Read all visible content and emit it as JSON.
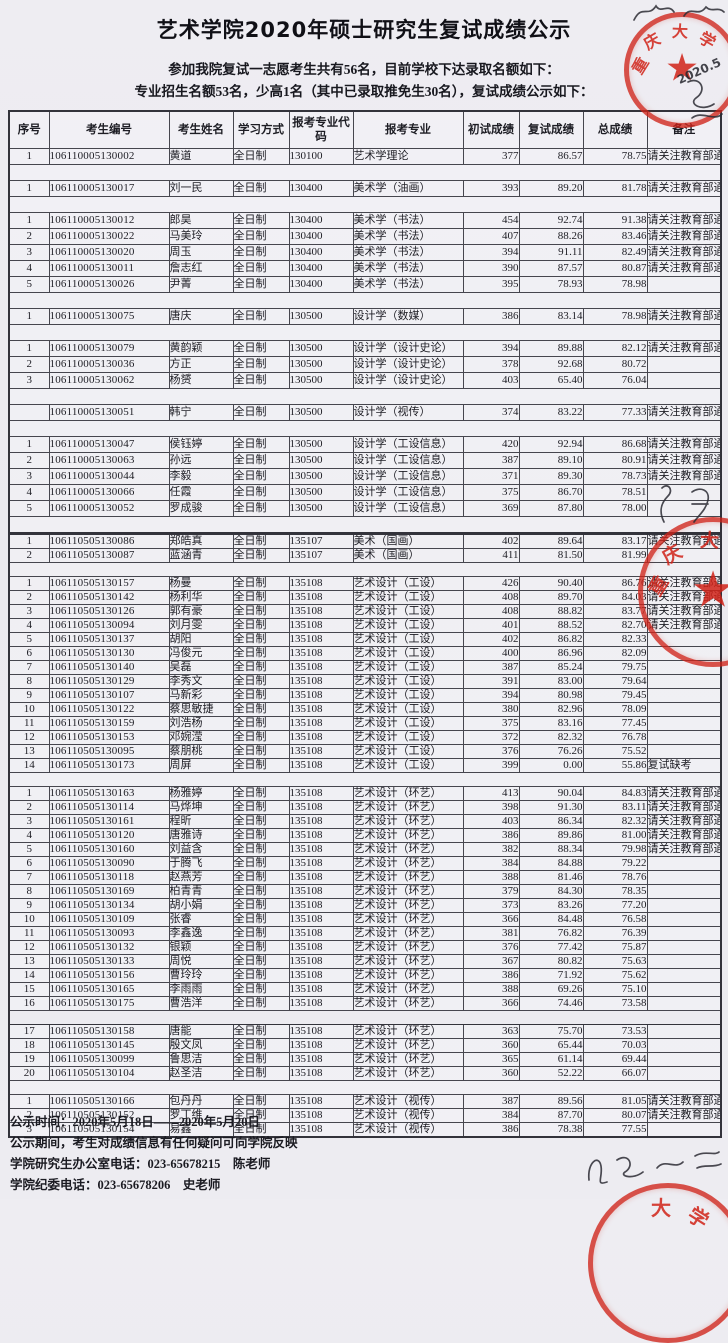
{
  "page": {
    "title": "艺术学院2020年硕士研究生复试成绩公示",
    "intro_line1": "参加我院复试一志愿考生共有56名，目前学校下达录取名额如下：",
    "intro_line2": "专业招生名额53名，少高1名（其中已录取推免生30名），复试成绩公示如下："
  },
  "table": {
    "headers": [
      "序号",
      "考生编号",
      "考生姓名",
      "学习方式",
      "报考专业代码",
      "报考专业",
      "初试成绩",
      "复试成绩",
      "总成绩",
      "备注"
    ]
  },
  "table1_rows": [
    [
      "1",
      "106110005130002",
      "黄道",
      "全日制",
      "130100",
      "艺术学理论",
      "377",
      "86.57",
      "78.75",
      "请关注教育部通知"
    ],
    "sep",
    [
      "1",
      "106110005130017",
      "刘一民",
      "全日制",
      "130400",
      "美术学（油画）",
      "393",
      "89.20",
      "81.78",
      "请关注教育部通知"
    ],
    "sep",
    [
      "1",
      "106110005130012",
      "郎昊",
      "全日制",
      "130400",
      "美术学（书法）",
      "454",
      "92.74",
      "91.38",
      "请关注教育部通知"
    ],
    [
      "2",
      "106110005130022",
      "马美玲",
      "全日制",
      "130400",
      "美术学（书法）",
      "407",
      "88.26",
      "83.46",
      "请关注教育部通知"
    ],
    [
      "3",
      "106110005130020",
      "周玉",
      "全日制",
      "130400",
      "美术学（书法）",
      "394",
      "91.11",
      "82.49",
      "请关注教育部通知"
    ],
    [
      "4",
      "106110005130011",
      "詹志红",
      "全日制",
      "130400",
      "美术学（书法）",
      "390",
      "87.57",
      "80.87",
      "请关注教育部通知"
    ],
    [
      "5",
      "106110005130026",
      "尹菁",
      "全日制",
      "130400",
      "美术学（书法）",
      "395",
      "78.93",
      "78.98",
      ""
    ],
    "sep",
    [
      "1",
      "106110005130075",
      "唐庆",
      "全日制",
      "130500",
      "设计学（数媒）",
      "386",
      "83.14",
      "78.98",
      "请关注教育部通知"
    ],
    "sep",
    [
      "1",
      "106110005130079",
      "黄韵颖",
      "全日制",
      "130500",
      "设计学（设计史论）",
      "394",
      "89.88",
      "82.12",
      "请关注教育部通知"
    ],
    [
      "2",
      "106110005130036",
      "方正",
      "全日制",
      "130500",
      "设计学（设计史论）",
      "378",
      "92.68",
      "80.72",
      ""
    ],
    [
      "3",
      "106110005130062",
      "杨赟",
      "全日制",
      "130500",
      "设计学（设计史论）",
      "403",
      "65.40",
      "76.04",
      ""
    ],
    "sep",
    [
      "",
      "106110005130051",
      "韩宁",
      "全日制",
      "130500",
      "设计学（视传）",
      "374",
      "83.22",
      "77.33",
      "请关注教育部通知"
    ],
    "sep",
    [
      "1",
      "106110005130047",
      "侯钰婷",
      "全日制",
      "130500",
      "设计学（工设信息）",
      "420",
      "92.94",
      "86.68",
      "请关注教育部通知"
    ],
    [
      "2",
      "106110005130063",
      "孙远",
      "全日制",
      "130500",
      "设计学（工设信息）",
      "387",
      "89.10",
      "80.91",
      "请关注教育部通知"
    ],
    [
      "3",
      "106110005130044",
      "李毅",
      "全日制",
      "130500",
      "设计学（工设信息）",
      "371",
      "89.30",
      "78.73",
      "请关注教育部通知"
    ],
    [
      "4",
      "106110005130066",
      "任霞",
      "全日制",
      "130500",
      "设计学（工设信息）",
      "375",
      "86.70",
      "78.51",
      ""
    ],
    [
      "5",
      "106110005130052",
      "罗成骏",
      "全日制",
      "130500",
      "设计学（工设信息）",
      "369",
      "87.80",
      "78.00",
      ""
    ],
    "sep"
  ],
  "table2_rows": [
    [
      "1",
      "106110505130086",
      "郑皓真",
      "全日制",
      "135107",
      "美术（国画）",
      "402",
      "89.64",
      "83.17",
      "请关注教育部通知"
    ],
    [
      "2",
      "106110505130087",
      "蓝涵青",
      "全日制",
      "135107",
      "美术（国画）",
      "411",
      "81.50",
      "81.99",
      ""
    ],
    "sep",
    [
      "1",
      "106110505130157",
      "杨曼",
      "全日制",
      "135108",
      "艺术设计（工设）",
      "426",
      "90.40",
      "86.76",
      "请关注教育部通知"
    ],
    [
      "2",
      "106110505130142",
      "杨利华",
      "全日制",
      "135108",
      "艺术设计（工设）",
      "408",
      "89.70",
      "84.03",
      "请关注教育部通知（少高）"
    ],
    [
      "3",
      "106110505130126",
      "郭有豪",
      "全日制",
      "135108",
      "艺术设计（工设）",
      "408",
      "88.82",
      "83.77",
      "请关注教育部通知"
    ],
    [
      "4",
      "106110505130094",
      "刘月雯",
      "全日制",
      "135108",
      "艺术设计（工设）",
      "401",
      "88.52",
      "82.70",
      "请关注教育部通知"
    ],
    [
      "5",
      "106110505130137",
      "胡阳",
      "全日制",
      "135108",
      "艺术设计（工设）",
      "402",
      "86.82",
      "82.33",
      ""
    ],
    [
      "6",
      "106110505130130",
      "冯俊元",
      "全日制",
      "135108",
      "艺术设计（工设）",
      "400",
      "86.96",
      "82.09",
      ""
    ],
    [
      "7",
      "106110505130140",
      "吴磊",
      "全日制",
      "135108",
      "艺术设计（工设）",
      "387",
      "85.24",
      "79.75",
      ""
    ],
    [
      "8",
      "106110505130129",
      "李秀文",
      "全日制",
      "135108",
      "艺术设计（工设）",
      "391",
      "83.00",
      "79.64",
      ""
    ],
    [
      "9",
      "106110505130107",
      "马新彩",
      "全日制",
      "135108",
      "艺术设计（工设）",
      "394",
      "80.98",
      "79.45",
      ""
    ],
    [
      "10",
      "106110505130122",
      "蔡思敏捷",
      "全日制",
      "135108",
      "艺术设计（工设）",
      "380",
      "82.96",
      "78.09",
      ""
    ],
    [
      "11",
      "106110505130159",
      "刘浩杨",
      "全日制",
      "135108",
      "艺术设计（工设）",
      "375",
      "83.16",
      "77.45",
      ""
    ],
    [
      "12",
      "106110505130153",
      "邓婉滢",
      "全日制",
      "135108",
      "艺术设计（工设）",
      "372",
      "82.32",
      "76.78",
      ""
    ],
    [
      "13",
      "106110505130095",
      "蔡朋桃",
      "全日制",
      "135108",
      "艺术设计（工设）",
      "376",
      "76.26",
      "75.52",
      ""
    ],
    [
      "14",
      "106110505130173",
      "周屏",
      "全日制",
      "135108",
      "艺术设计（工设）",
      "399",
      "0.00",
      "55.86",
      "复试缺考"
    ],
    "sep",
    [
      "1",
      "106110505130163",
      "杨雅婷",
      "全日制",
      "135108",
      "艺术设计（环艺）",
      "413",
      "90.04",
      "84.83",
      "请关注教育部通知"
    ],
    [
      "2",
      "106110505130114",
      "马烨坤",
      "全日制",
      "135108",
      "艺术设计（环艺）",
      "398",
      "91.30",
      "83.11",
      "请关注教育部通知"
    ],
    [
      "3",
      "106110505130161",
      "程昕",
      "全日制",
      "135108",
      "艺术设计（环艺）",
      "403",
      "86.34",
      "82.32",
      "请关注教育部通知"
    ],
    [
      "4",
      "106110505130120",
      "唐雅诗",
      "全日制",
      "135108",
      "艺术设计（环艺）",
      "386",
      "89.86",
      "81.00",
      "请关注教育部通知"
    ],
    [
      "5",
      "106110505130160",
      "刘益含",
      "全日制",
      "135108",
      "艺术设计（环艺）",
      "382",
      "88.34",
      "79.98",
      "请关注教育部通知"
    ],
    [
      "6",
      "106110505130090",
      "于腾飞",
      "全日制",
      "135108",
      "艺术设计（环艺）",
      "384",
      "84.88",
      "79.22",
      ""
    ],
    [
      "7",
      "106110505130118",
      "赵燕芳",
      "全日制",
      "135108",
      "艺术设计（环艺）",
      "388",
      "81.46",
      "78.76",
      ""
    ],
    [
      "8",
      "106110505130169",
      "柏青青",
      "全日制",
      "135108",
      "艺术设计（环艺）",
      "379",
      "84.30",
      "78.35",
      ""
    ],
    [
      "9",
      "106110505130134",
      "胡小娟",
      "全日制",
      "135108",
      "艺术设计（环艺）",
      "373",
      "83.26",
      "77.20",
      ""
    ],
    [
      "10",
      "106110505130109",
      "张睿",
      "全日制",
      "135108",
      "艺术设计（环艺）",
      "366",
      "84.48",
      "76.58",
      ""
    ],
    [
      "11",
      "106110505130093",
      "李鑫逸",
      "全日制",
      "135108",
      "艺术设计（环艺）",
      "381",
      "76.82",
      "76.39",
      ""
    ],
    [
      "12",
      "106110505130132",
      "银颖",
      "全日制",
      "135108",
      "艺术设计（环艺）",
      "376",
      "77.42",
      "75.87",
      ""
    ],
    [
      "13",
      "106110505130133",
      "周悦",
      "全日制",
      "135108",
      "艺术设计（环艺）",
      "367",
      "80.82",
      "75.63",
      ""
    ],
    [
      "14",
      "106110505130156",
      "曹玲玲",
      "全日制",
      "135108",
      "艺术设计（环艺）",
      "386",
      "71.92",
      "75.62",
      ""
    ],
    [
      "15",
      "106110505130165",
      "李雨雨",
      "全日制",
      "135108",
      "艺术设计（环艺）",
      "388",
      "69.26",
      "75.10",
      ""
    ],
    [
      "16",
      "106110505130175",
      "曹浩洋",
      "全日制",
      "135108",
      "艺术设计（环艺）",
      "366",
      "74.46",
      "73.58",
      ""
    ],
    "gap",
    [
      "17",
      "106110505130158",
      "唐能",
      "全日制",
      "135108",
      "艺术设计（环艺）",
      "363",
      "75.70",
      "73.53",
      ""
    ],
    [
      "18",
      "106110505130145",
      "殷文凤",
      "全日制",
      "135108",
      "艺术设计（环艺）",
      "360",
      "65.44",
      "70.03",
      ""
    ],
    [
      "19",
      "106110505130099",
      "鲁思洁",
      "全日制",
      "135108",
      "艺术设计（环艺）",
      "365",
      "61.14",
      "69.44",
      ""
    ],
    [
      "20",
      "106110505130104",
      "赵圣洁",
      "全日制",
      "135108",
      "艺术设计（环艺）",
      "360",
      "52.22",
      "66.07",
      ""
    ],
    "sep",
    [
      "1",
      "106110505130166",
      "包丹丹",
      "全日制",
      "135108",
      "艺术设计（视传）",
      "387",
      "89.56",
      "81.05",
      "请关注教育部通知"
    ],
    [
      "2",
      "106110505130152",
      "罗丁维",
      "全日制",
      "135108",
      "艺术设计（视传）",
      "384",
      "87.70",
      "80.07",
      "请关注教育部通知"
    ],
    [
      "3",
      "106110505130154",
      "易鑫",
      "全日制",
      "135108",
      "艺术设计（视传）",
      "386",
      "78.38",
      "77.55",
      ""
    ]
  ],
  "footer": {
    "lines": [
      "公示时间：2020年5月18日——2020年5月20日",
      "公示期间，考生对成绩信息有任何疑问可向学院反映",
      "学院研究生办公室电话：023-65678215　陈老师",
      "学院纪委电话：023-65678206　史老师"
    ]
  },
  "stamp": {
    "chars": [
      "重",
      "庆",
      "大",
      "学"
    ],
    "handwritten_date": "2020.5"
  }
}
